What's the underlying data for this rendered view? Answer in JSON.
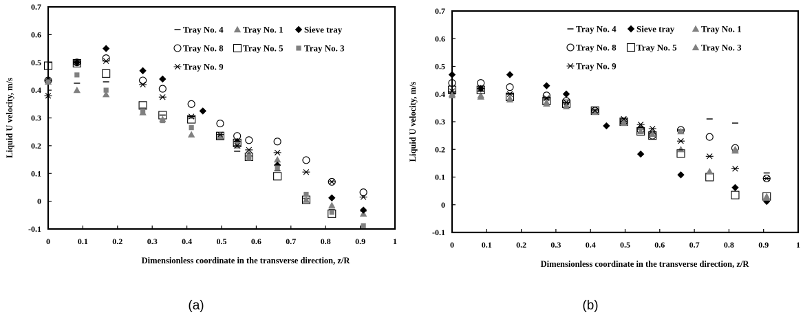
{
  "styles": {
    "Tray No. 4": {
      "marker": "dash",
      "color": "#4a4a4a"
    },
    "Tray No. 1": {
      "marker": "triangle",
      "color": "#808080"
    },
    "Sieve tray": {
      "marker": "diamond",
      "color": "#000000"
    },
    "Tray No. 8": {
      "marker": "circle-open",
      "color": "#000000"
    },
    "Tray No. 5": {
      "marker": "square-open",
      "color": "#000000"
    },
    "Tray No. 3": {
      "marker": "square",
      "color": "#808080"
    },
    "Tray No. 3 (b)": {
      "marker": "triangle",
      "color": "#808080"
    },
    "Tray No. 9": {
      "marker": "asterisk",
      "color": "#000000"
    }
  },
  "chart_data": [
    {
      "type": "scatter",
      "caption": "(a)",
      "xlabel": "Dimensionless coordinate in the transverse direction, z/R",
      "ylabel": "Liquid U velocity, m/s",
      "xlim": [
        0,
        1
      ],
      "ylim": [
        -0.1,
        0.7
      ],
      "xticks": [
        "0",
        "0.1",
        "0.2",
        "0.3",
        "0.4",
        "0.5",
        "0.6",
        "0.7",
        "0.8",
        "0.9",
        "1"
      ],
      "yticks": [
        "-0.1",
        "0",
        "0.1",
        "0.2",
        "0.3",
        "0.4",
        "0.5",
        "0.6",
        "0.7"
      ],
      "legend_position": "top-right",
      "legend_order": [
        [
          "Tray No. 4",
          "Tray No. 1",
          "Sieve tray"
        ],
        [
          "Tray No. 8",
          "Tray No. 5",
          "Tray No. 3"
        ],
        [
          "Tray No. 9"
        ]
      ],
      "grid": false,
      "series": [
        {
          "name": "Tray No. 4",
          "style": "Tray No. 4",
          "x": [
            0,
            0.083,
            0.167,
            0.273,
            0.33,
            0.413,
            0.496,
            0.545,
            0.579,
            0.661,
            0.744,
            0.818,
            0.909
          ],
          "y": [
            0.435,
            0.425,
            0.43,
            0.335,
            0.31,
            0.3,
            0.225,
            0.18,
            0.165,
            0.11,
            0.01,
            -0.03,
            -0.035
          ]
        },
        {
          "name": "Tray No. 1",
          "style": "Tray No. 1",
          "x": [
            0,
            0.083,
            0.167,
            0.273,
            0.33,
            0.413,
            0.496,
            0.545,
            0.579,
            0.661,
            0.744,
            0.818,
            0.909
          ],
          "y": [
            0.43,
            0.4,
            0.385,
            0.32,
            0.295,
            0.24,
            0.23,
            0.2,
            0.17,
            0.15,
            0.005,
            -0.015,
            -0.045
          ]
        },
        {
          "name": "Sieve tray",
          "style": "Sieve tray",
          "x": [
            0,
            0.083,
            0.167,
            0.273,
            0.33,
            0.446,
            0.545,
            0.661,
            0.818,
            0.909
          ],
          "y": [
            0.435,
            0.5,
            0.55,
            0.47,
            0.44,
            0.325,
            0.215,
            0.13,
            0.012,
            -0.032
          ]
        },
        {
          "name": "Tray No. 8",
          "style": "Tray No. 8",
          "x": [
            0,
            0.083,
            0.167,
            0.273,
            0.33,
            0.413,
            0.496,
            0.545,
            0.579,
            0.661,
            0.744,
            0.818,
            0.909
          ],
          "y": [
            0.435,
            0.5,
            0.515,
            0.435,
            0.405,
            0.35,
            0.28,
            0.235,
            0.22,
            0.215,
            0.148,
            0.07,
            0.032
          ]
        },
        {
          "name": "Tray No. 5",
          "style": "Tray No. 5",
          "x": [
            0,
            0.083,
            0.167,
            0.273,
            0.33,
            0.413,
            0.496,
            0.545,
            0.579,
            0.661,
            0.744,
            0.818
          ],
          "y": [
            0.488,
            0.497,
            0.46,
            0.345,
            0.31,
            0.295,
            0.235,
            0.21,
            0.16,
            0.09,
            0.005,
            -0.045
          ]
        },
        {
          "name": "Tray No. 3",
          "style": "Tray No. 3",
          "x": [
            0,
            0.083,
            0.167,
            0.273,
            0.33,
            0.413,
            0.496,
            0.545,
            0.579,
            0.661,
            0.744,
            0.818,
            0.909
          ],
          "y": [
            0.43,
            0.455,
            0.4,
            0.325,
            0.29,
            0.265,
            0.235,
            0.205,
            0.155,
            0.12,
            0.025,
            -0.04,
            -0.088
          ]
        },
        {
          "name": "Tray No. 9",
          "style": "Tray No. 9",
          "x": [
            0,
            0.083,
            0.167,
            0.273,
            0.33,
            0.413,
            0.496,
            0.545,
            0.579,
            0.661,
            0.744,
            0.818,
            0.909
          ],
          "y": [
            0.38,
            0.5,
            0.505,
            0.42,
            0.375,
            0.305,
            0.24,
            0.2,
            0.185,
            0.175,
            0.105,
            0.07,
            0.015
          ]
        }
      ]
    },
    {
      "type": "scatter",
      "caption": "(b)",
      "xlabel": "Dimensionless coordinate in the transverse direction, z/R",
      "ylabel": "Liquid U velocity, m/s",
      "xlim": [
        0,
        1
      ],
      "ylim": [
        -0.1,
        0.7
      ],
      "xticks": [
        "0",
        "0.1",
        "0.2",
        "0.3",
        "0.4",
        "0.5",
        "0.6",
        "0.7",
        "0.8",
        "0.9",
        "1"
      ],
      "yticks": [
        "-0.1",
        "0",
        "0.1",
        "0.2",
        "0.3",
        "0.4",
        "0.5",
        "0.6",
        "0.7"
      ],
      "legend_position": "top-right",
      "legend_order": [
        [
          "Tray No. 4",
          "Sieve tray",
          "Tray No. 1"
        ],
        [
          "Tray No. 8",
          "Tray No. 5",
          "Tray No. 3"
        ],
        [
          "Tray No. 9"
        ]
      ],
      "grid": false,
      "series": [
        {
          "name": "Tray No. 4",
          "style": "Tray No. 4",
          "x": [
            0,
            0.083,
            0.167,
            0.273,
            0.33,
            0.413,
            0.496,
            0.545,
            0.579,
            0.661,
            0.744,
            0.818,
            0.909
          ],
          "y": [
            0.405,
            0.41,
            0.4,
            0.38,
            0.37,
            0.345,
            0.3,
            0.28,
            0.26,
            0.27,
            0.31,
            0.295,
            0.115
          ]
        },
        {
          "name": "Sieve tray",
          "style": "Sieve tray",
          "x": [
            0,
            0.083,
            0.167,
            0.273,
            0.33,
            0.446,
            0.545,
            0.661,
            0.818,
            0.909
          ],
          "y": [
            0.47,
            0.42,
            0.47,
            0.43,
            0.4,
            0.285,
            0.183,
            0.108,
            0.062,
            0.012
          ]
        },
        {
          "name": "Tray No. 1",
          "style": "Tray No. 1",
          "x": [
            0,
            0.083,
            0.167,
            0.273,
            0.33,
            0.413,
            0.496,
            0.545,
            0.579,
            0.661,
            0.744,
            0.818,
            0.909
          ],
          "y": [
            0.4,
            0.395,
            0.385,
            0.37,
            0.36,
            0.335,
            0.3,
            0.28,
            0.265,
            0.2,
            0.12,
            0.195,
            0.03
          ]
        },
        {
          "name": "Tray No. 8",
          "style": "Tray No. 8",
          "x": [
            0,
            0.083,
            0.167,
            0.273,
            0.33,
            0.413,
            0.496,
            0.545,
            0.579,
            0.661,
            0.744,
            0.818,
            0.909
          ],
          "y": [
            0.44,
            0.44,
            0.425,
            0.395,
            0.375,
            0.34,
            0.3,
            0.27,
            0.25,
            0.27,
            0.245,
            0.205,
            0.095
          ]
        },
        {
          "name": "Tray No. 5",
          "style": "Tray No. 5",
          "x": [
            0,
            0.083,
            0.167,
            0.273,
            0.33,
            0.413,
            0.496,
            0.545,
            0.579,
            0.661,
            0.744,
            0.818,
            0.909
          ],
          "y": [
            0.415,
            0.415,
            0.39,
            0.375,
            0.365,
            0.34,
            0.3,
            0.265,
            0.25,
            0.185,
            0.1,
            0.035,
            0.03
          ]
        },
        {
          "name": "Tray No. 3",
          "style": "Tray No. 3 (b)",
          "x": [
            0,
            0.083,
            0.167,
            0.273,
            0.33,
            0.413,
            0.496,
            0.545,
            0.579,
            0.661,
            0.744,
            0.818,
            0.909
          ],
          "y": [
            0.395,
            0.39,
            0.38,
            0.365,
            0.355,
            0.335,
            0.295,
            0.265,
            0.255,
            0.265,
            0.12,
            0.2,
            0.025
          ]
        },
        {
          "name": "Tray No. 9",
          "style": "Tray No. 9",
          "x": [
            0,
            0.083,
            0.167,
            0.273,
            0.33,
            0.413,
            0.496,
            0.545,
            0.579,
            0.661,
            0.744,
            0.818,
            0.909
          ],
          "y": [
            0.41,
            0.42,
            0.4,
            0.385,
            0.37,
            0.34,
            0.31,
            0.29,
            0.275,
            0.23,
            0.175,
            0.13,
            0.095
          ]
        }
      ]
    }
  ]
}
